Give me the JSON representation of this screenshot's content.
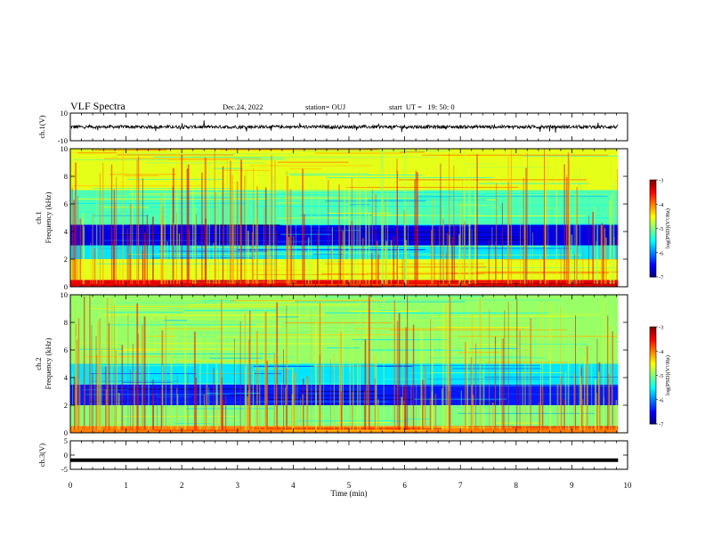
{
  "header": {
    "title": "VLF Spectra",
    "date": "Dec.24, 2022",
    "station": "station= OUJ",
    "start": "start  UT =   19: 50: 0"
  },
  "chart_data": [
    {
      "type": "line",
      "panel": "ch1-waveform",
      "ylabel": "ch.1(V)",
      "ylim": [
        -10,
        10
      ],
      "y_ticks": [
        "10",
        "-10"
      ],
      "xlim": [
        0,
        10
      ],
      "description_values": {
        "baseline": 0,
        "noise_amplitude": 1.2
      }
    },
    {
      "type": "heatmap",
      "panel": "ch1-spectrogram",
      "ylabel_top": "ch.1",
      "ylabel": "Frequency (kHz)",
      "ylim": [
        0,
        10
      ],
      "y_ticks": [
        "0",
        "2",
        "4",
        "6",
        "8",
        "10"
      ],
      "xlim": [
        0,
        9.83
      ],
      "colorbar": {
        "label": "log(PSD)(V²/Hz)",
        "range": [
          -7,
          -3
        ],
        "ticks": [
          "-3",
          "-4",
          "-5",
          "-6",
          "-7"
        ]
      },
      "bands": [
        {
          "f_min": 0.0,
          "f_max": 0.5,
          "log_psd": -3.4
        },
        {
          "f_min": 0.5,
          "f_max": 2.0,
          "log_psd": -4.6
        },
        {
          "f_min": 2.0,
          "f_max": 3.0,
          "log_psd": -5.6
        },
        {
          "f_min": 3.0,
          "f_max": 4.5,
          "log_psd": -6.6
        },
        {
          "f_min": 4.5,
          "f_max": 7.0,
          "log_psd": -5.2
        },
        {
          "f_min": 7.0,
          "f_max": 10.0,
          "log_psd": -4.6
        }
      ]
    },
    {
      "type": "heatmap",
      "panel": "ch2-spectrogram",
      "ylabel_top": "ch.2",
      "ylabel": "Frequency (kHz)",
      "ylim": [
        0,
        10
      ],
      "y_ticks": [
        "0",
        "2",
        "4",
        "6",
        "8",
        "10"
      ],
      "xlim": [
        0,
        9.83
      ],
      "colorbar": {
        "label": "log(PSD)(V²/Hz)",
        "range": [
          -7,
          -3
        ],
        "ticks": [
          "-3",
          "-4",
          "-5",
          "-6",
          "-7"
        ]
      },
      "bands": [
        {
          "f_min": 0.0,
          "f_max": 0.5,
          "log_psd": -4.0
        },
        {
          "f_min": 0.5,
          "f_max": 2.0,
          "log_psd": -5.0
        },
        {
          "f_min": 2.0,
          "f_max": 3.5,
          "log_psd": -6.4
        },
        {
          "f_min": 3.5,
          "f_max": 5.0,
          "log_psd": -5.6
        },
        {
          "f_min": 5.0,
          "f_max": 10.0,
          "log_psd": -4.9
        }
      ]
    },
    {
      "type": "line",
      "panel": "ch3-waveform",
      "ylabel": "ch.3(V)",
      "ylim": [
        -5,
        5
      ],
      "y_ticks": [
        "5",
        "0",
        "-5"
      ],
      "xlim": [
        0,
        10
      ],
      "x": [
        0,
        9.83
      ],
      "y": [
        -1.8,
        -1.8
      ]
    }
  ],
  "x_axis": {
    "label": "Time (min)",
    "ticks": [
      "0",
      "1",
      "2",
      "3",
      "4",
      "5",
      "6",
      "7",
      "8",
      "9",
      "10"
    ]
  },
  "colors": {
    "low": "#00007f",
    "mid": "#00ff66",
    "high": "#d40000",
    "trace": "#000000"
  }
}
